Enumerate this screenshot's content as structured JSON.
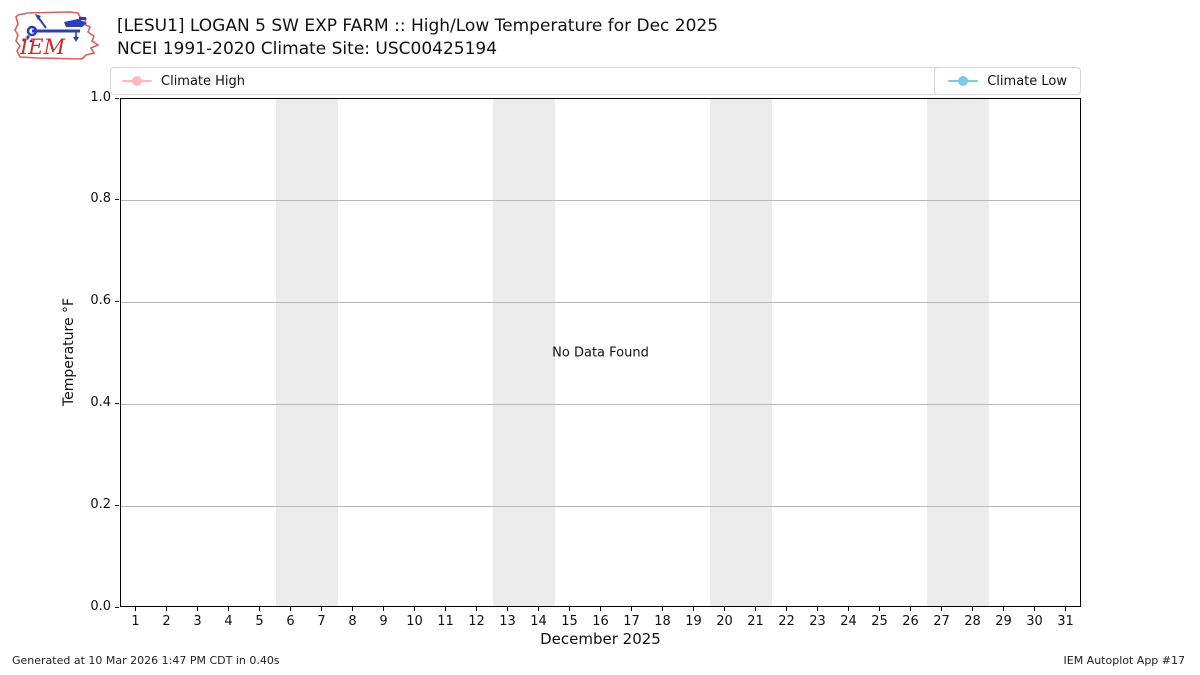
{
  "logo": {
    "text": "IEM"
  },
  "header": {
    "title_line1": "[LESU1] LOGAN 5 SW EXP FARM :: High/Low Temperature for Dec 2025",
    "title_line2": "NCEI 1991-2020 Climate Site: USC00425194"
  },
  "legend": {
    "high_label": "Climate High",
    "low_label": "Climate Low",
    "high_color": "#ffb6c1",
    "low_color": "#7ec8e8"
  },
  "chart_data": {
    "type": "line",
    "title": "[LESU1] LOGAN 5 SW EXP FARM :: High/Low Temperature for Dec 2025",
    "subtitle": "NCEI 1991-2020 Climate Site: USC00425194",
    "xlabel": "December 2025",
    "ylabel": "Temperature °F",
    "no_data_message": "No Data Found",
    "xlim": [
      0.5,
      31.5
    ],
    "ylim": [
      0.0,
      1.0
    ],
    "x_ticks": [
      1,
      2,
      3,
      4,
      5,
      6,
      7,
      8,
      9,
      10,
      11,
      12,
      13,
      14,
      15,
      16,
      17,
      18,
      19,
      20,
      21,
      22,
      23,
      24,
      25,
      26,
      27,
      28,
      29,
      30,
      31
    ],
    "y_ticks": [
      0.0,
      0.2,
      0.4,
      0.6,
      0.8,
      1.0
    ],
    "grid": "horizontal",
    "weekend_bands": [
      [
        5.5,
        7.5
      ],
      [
        12.5,
        14.5
      ],
      [
        19.5,
        21.5
      ],
      [
        26.5,
        28.5
      ]
    ],
    "band_color": "#ececec",
    "legend_position": "top",
    "series": [
      {
        "name": "Climate High",
        "color": "#ffb6c1",
        "x": [],
        "values": []
      },
      {
        "name": "Climate Low",
        "color": "#7ec8e8",
        "x": [],
        "values": []
      }
    ]
  },
  "footer": {
    "left": "Generated at 10 Mar 2026 1:47 PM CDT in 0.40s",
    "right": "IEM Autoplot App #17"
  }
}
